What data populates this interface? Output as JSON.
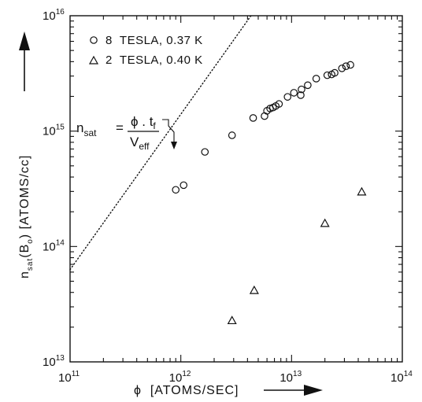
{
  "chart_data": {
    "type": "scatter",
    "x_scale": "log",
    "y_scale": "log",
    "xlim": [
      100000000000.0,
      100000000000000.0
    ],
    "ylim": [
      10000000000000.0,
      1e+16
    ],
    "x_ticks": [
      {
        "base": "10",
        "exp": "11",
        "value": 100000000000.0
      },
      {
        "base": "10",
        "exp": "12",
        "value": 1000000000000.0
      },
      {
        "base": "10",
        "exp": "13",
        "value": 10000000000000.0
      },
      {
        "base": "10",
        "exp": "14",
        "value": 100000000000000.0
      }
    ],
    "y_ticks": [
      {
        "base": "10",
        "exp": "13",
        "value": 10000000000000.0
      },
      {
        "base": "10",
        "exp": "14",
        "value": 100000000000000.0
      },
      {
        "base": "10",
        "exp": "15",
        "value": 1000000000000000.0
      },
      {
        "base": "10",
        "exp": "16",
        "value": 1e+16
      }
    ],
    "xlabel": "ϕ  [ATOMS/SEC]",
    "ylabel": "n",
    "ylabel_sub": "sat",
    "ylabel_rest": "(B",
    "ylabel_sub2": "o",
    "ylabel_tail": ") [ATOMS/cc]",
    "grid": false,
    "legend_placement": "top-left",
    "series": [
      {
        "name": "8  TESLA, 0.37 K",
        "marker": "circle",
        "points": [
          [
            900000000000.0,
            310000000000000.0
          ],
          [
            1060000000000.0,
            340000000000000.0
          ],
          [
            1650000000000.0,
            660000000000000.0
          ],
          [
            2900000000000.0,
            920000000000000.0
          ],
          [
            4500000000000.0,
            1300000000000000.0
          ],
          [
            5700000000000.0,
            1350000000000000.0
          ],
          [
            6000000000000.0,
            1500000000000000.0
          ],
          [
            6400000000000.0,
            1570000000000000.0
          ],
          [
            6800000000000.0,
            1600000000000000.0
          ],
          [
            7200000000000.0,
            1650000000000000.0
          ],
          [
            7700000000000.0,
            1720000000000000.0
          ],
          [
            9200000000000.0,
            1980000000000000.0
          ],
          [
            10500000000000.0,
            2150000000000000.0
          ],
          [
            12100000000000.0,
            2050000000000000.0
          ],
          [
            12300000000000.0,
            2300000000000000.0
          ],
          [
            14000000000000.0,
            2500000000000000.0
          ],
          [
            16700000000000.0,
            2850000000000000.0
          ],
          [
            21000000000000.0,
            3050000000000000.0
          ],
          [
            23000000000000.0,
            3100000000000000.0
          ],
          [
            24500000000000.0,
            3200000000000000.0
          ],
          [
            28500000000000.0,
            3500000000000000.0
          ],
          [
            31000000000000.0,
            3650000000000000.0
          ],
          [
            34000000000000.0,
            3750000000000000.0
          ]
        ]
      },
      {
        "name": "2  TESLA, 0.40 K",
        "marker": "triangle",
        "points": [
          [
            2900000000000.0,
            23000000000000.0
          ],
          [
            4600000000000.0,
            42000000000000.0
          ],
          [
            20000000000000.0,
            160000000000000.0
          ],
          [
            43000000000000.0,
            300000000000000.0
          ]
        ]
      }
    ],
    "reference_line": {
      "style": "dotted",
      "points": [
        [
          100000000000.0,
          63000000000000.0
        ],
        [
          4300000000000.0,
          1e+16
        ]
      ]
    },
    "annotation": {
      "lhs": "n",
      "lhs_sub": "sat",
      "eq": "=",
      "numerator": "ϕ . t",
      "numerator_sub": "f",
      "denominator": "V",
      "denominator_sub": "eff"
    },
    "colors": {
      "ink": "#111111",
      "background": "#ffffff"
    }
  }
}
